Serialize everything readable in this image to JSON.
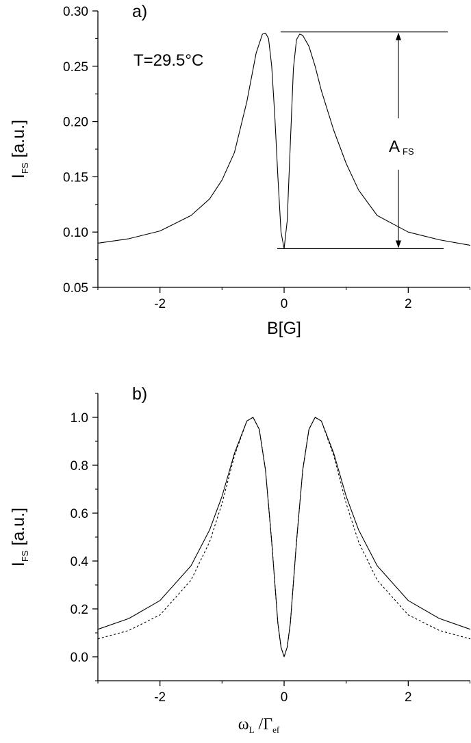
{
  "chart_data": [
    {
      "type": "line",
      "panel_label": "a)",
      "annotation": "T=29.5°C",
      "amplitude_label": {
        "main": "A",
        "sub": "FS"
      },
      "xlabel": "B[G]",
      "ylabel": {
        "main": "I",
        "sub": "FS",
        "rest": " [a.u.]"
      },
      "xlim": [
        -3,
        3
      ],
      "ylim": [
        0.05,
        0.3
      ],
      "xticks": [
        -2,
        0,
        2
      ],
      "xtick_labels": [
        "-2",
        "0",
        "2"
      ],
      "yticks": [
        0.05,
        0.1,
        0.15,
        0.2,
        0.25,
        0.3
      ],
      "ytick_labels": [
        "0.05",
        "0.10",
        "0.15",
        "0.20",
        "0.25",
        "0.30"
      ],
      "reference_levels": {
        "top": 0.281,
        "bottom": 0.085
      },
      "series": [
        {
          "style": "solid",
          "x": [
            -3.0,
            -2.5,
            -2.0,
            -1.5,
            -1.2,
            -1.0,
            -0.8,
            -0.6,
            -0.45,
            -0.35,
            -0.3,
            -0.25,
            -0.2,
            -0.15,
            -0.1,
            -0.05,
            0.0,
            0.05,
            0.1,
            0.15,
            0.2,
            0.25,
            0.3,
            0.4,
            0.5,
            0.6,
            0.8,
            1.0,
            1.2,
            1.5,
            2.0,
            2.5,
            3.0
          ],
          "y": [
            0.09,
            0.094,
            0.101,
            0.115,
            0.13,
            0.147,
            0.172,
            0.218,
            0.262,
            0.279,
            0.28,
            0.275,
            0.25,
            0.205,
            0.15,
            0.1,
            0.085,
            0.11,
            0.18,
            0.248,
            0.274,
            0.279,
            0.278,
            0.268,
            0.25,
            0.228,
            0.192,
            0.162,
            0.138,
            0.115,
            0.1,
            0.093,
            0.088
          ]
        }
      ]
    },
    {
      "type": "line",
      "panel_label": "b)",
      "xlabel": {
        "main": "ω",
        "sub1": "L",
        "mid": " /Γ",
        "sub2": "ef"
      },
      "ylabel": {
        "main": "I",
        "sub": "FS",
        "rest": " [a.u.]"
      },
      "xlim": [
        -3,
        3
      ],
      "ylim": [
        -0.1,
        1.1
      ],
      "xticks": [
        -2,
        0,
        2
      ],
      "xtick_labels": [
        "-2",
        "0",
        "2"
      ],
      "yticks": [
        0.0,
        0.2,
        0.4,
        0.6,
        0.8,
        1.0
      ],
      "ytick_labels": [
        "0.0",
        "0.2",
        "0.4",
        "0.6",
        "0.8",
        "1.0"
      ],
      "series": [
        {
          "style": "solid",
          "x": [
            -3.0,
            -2.5,
            -2.0,
            -1.5,
            -1.2,
            -1.0,
            -0.8,
            -0.6,
            -0.5,
            -0.4,
            -0.3,
            -0.2,
            -0.1,
            -0.05,
            0.0,
            0.05,
            0.1,
            0.2,
            0.3,
            0.4,
            0.5,
            0.6,
            0.8,
            1.0,
            1.2,
            1.5,
            2.0,
            2.5,
            3.0
          ],
          "y": [
            0.115,
            0.16,
            0.235,
            0.38,
            0.53,
            0.67,
            0.85,
            0.985,
            1.0,
            0.95,
            0.78,
            0.48,
            0.14,
            0.04,
            0.0,
            0.04,
            0.14,
            0.48,
            0.78,
            0.95,
            1.0,
            0.985,
            0.85,
            0.67,
            0.53,
            0.38,
            0.235,
            0.16,
            0.115
          ]
        },
        {
          "style": "dashed",
          "x": [
            -3.0,
            -2.5,
            -2.0,
            -1.5,
            -1.2,
            -1.0,
            -0.8,
            -0.6,
            -0.5,
            -0.4,
            -0.3,
            -0.2,
            -0.1,
            -0.05,
            0.0,
            0.05,
            0.1,
            0.2,
            0.3,
            0.4,
            0.5,
            0.6,
            0.8,
            1.0,
            1.2,
            1.5,
            2.0,
            2.5,
            3.0
          ],
          "y": [
            0.075,
            0.11,
            0.175,
            0.32,
            0.48,
            0.64,
            0.84,
            0.985,
            1.0,
            0.95,
            0.78,
            0.48,
            0.14,
            0.04,
            0.0,
            0.04,
            0.14,
            0.48,
            0.78,
            0.95,
            1.0,
            0.985,
            0.84,
            0.64,
            0.48,
            0.32,
            0.175,
            0.11,
            0.075
          ]
        }
      ]
    }
  ]
}
